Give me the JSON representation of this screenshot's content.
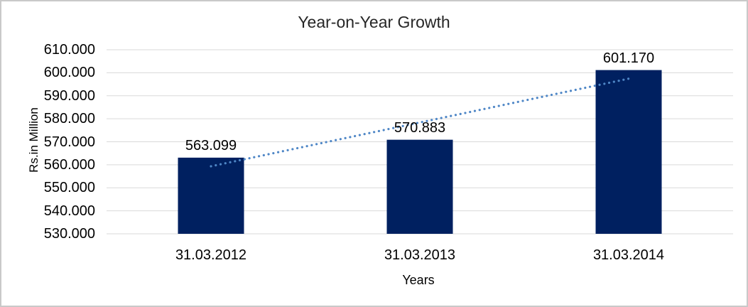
{
  "chart_data": {
    "type": "bar",
    "title": "Year-on-Year Growth",
    "xlabel": "Years",
    "ylabel": "Rs.in Million",
    "categories": [
      "31.03.2012",
      "31.03.2013",
      "31.03.2014"
    ],
    "values": [
      563.099,
      570.883,
      601.17
    ],
    "data_labels": [
      "563.099",
      "570.883",
      "601.170"
    ],
    "ylim": [
      530,
      610
    ],
    "ytick_values": [
      530,
      540,
      550,
      560,
      570,
      580,
      590,
      600,
      610
    ],
    "ytick_labels": [
      "530.000",
      "540.000",
      "550.000",
      "560.000",
      "570.000",
      "580.000",
      "590.000",
      "600.000",
      "610.000"
    ],
    "grid": true,
    "legend": "none",
    "trendline": {
      "type": "linear",
      "style": "dotted"
    },
    "colors": {
      "bar": "#002060",
      "trendline": "#4e86c6",
      "gridline": "#d9d9d9",
      "text": "#000000",
      "title_text": "#262626",
      "frame_border": "#c9c9c9",
      "background": "#ffffff"
    }
  }
}
